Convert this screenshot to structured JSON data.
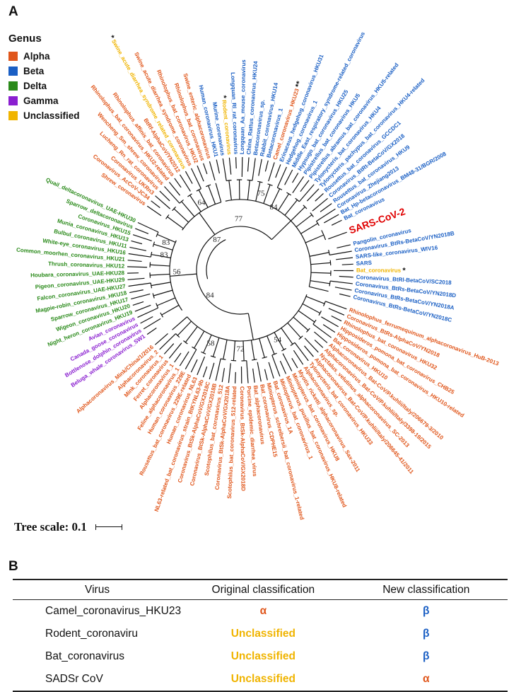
{
  "panel_a": {
    "letter": "A"
  },
  "panel_b": {
    "letter": "B"
  },
  "legend": {
    "title": "Genus",
    "items": [
      {
        "label": "Alpha",
        "color": "#e0561b"
      },
      {
        "label": "Beta",
        "color": "#1a5fc4"
      },
      {
        "label": "Delta",
        "color": "#2a8a1a"
      },
      {
        "label": "Gamma",
        "color": "#8a1fd0"
      },
      {
        "label": "Unclassified",
        "color": "#f0b400"
      }
    ]
  },
  "colors": {
    "Alpha": "#e0561b",
    "Beta": "#1a5fc4",
    "Delta": "#2a8a1a",
    "Gamma": "#8a1fd0",
    "Unclassified": "#f0b400",
    "highlight": "#e00000"
  },
  "tree": {
    "scale_label": "Tree scale: 0.1",
    "bootstrap": [
      "75",
      "84",
      "64",
      "77",
      "83",
      "83",
      "87",
      "56",
      "84",
      "58",
      "72",
      "54"
    ],
    "leaves": [
      {
        "label": "Rhinolophus_ferrumequinum_alphacoronavirus_HuB-2013",
        "genus": "Alpha"
      },
      {
        "label": "Coronavirus_BtRs-AlphaCoV/YN2018",
        "genus": "Alpha"
      },
      {
        "label": "Rhinolophus_bat_coronavirus_HKU32",
        "genus": "Alpha"
      },
      {
        "label": "Hipposideros_pomona_bat_coronavirus_CHB25",
        "genus": "Alpha"
      },
      {
        "label": "Hipposideros_pomona_bat_coronavirus_HKU10-related",
        "genus": "Alpha"
      },
      {
        "label": "Bat_coronavirus_HKU10",
        "genus": "Alpha"
      },
      {
        "label": "Alphacoronavirus_Bat-CoV/P.kuhlii/Italy/206679-3/2010",
        "genus": "Alpha"
      },
      {
        "label": "Alphacoronavirus_Bat-CoV/P.kuhlii/Italy/3398-19/2015",
        "genus": "Alpha"
      },
      {
        "label": "Nyctalus_velutinus_alphacoronavirus_SC-2013",
        "genus": "Alpha"
      },
      {
        "label": "Alphacoronavirus_Bat-CoV/P.kuhlii/Italy/206645-41/2011",
        "genus": "Alpha"
      },
      {
        "label": "Tylonycteris_bat_coronavirus_HKU33",
        "genus": "Alpha"
      },
      {
        "label": "Alphacoronavirus_sp.",
        "genus": "Alpha"
      },
      {
        "label": "Myotis_ricketti_alphacoronavirus_Sax-2011",
        "genus": "Alpha"
      },
      {
        "label": "Miniopterus_bat_coronavirus_HKU8",
        "genus": "Alpha"
      },
      {
        "label": "Miniopterus_pusillus_bat_coronavirus_HKU8-related",
        "genus": "Alpha"
      },
      {
        "label": "Miniopterus_bat_coronavirus_1",
        "genus": "Alpha"
      },
      {
        "label": "Bat_coronavirus_1A",
        "genus": "Alpha"
      },
      {
        "label": "Miniopterus_schreibersii_bat_coronavirus_1-related",
        "genus": "Alpha"
      },
      {
        "label": "Bat_coronavirus_CDPHE15",
        "genus": "Alpha"
      },
      {
        "label": "Bat_alphacoronavirus",
        "genus": "Alpha"
      },
      {
        "label": "Porcine_epidemic_diarrhea_virus",
        "genus": "Alpha"
      },
      {
        "label": "Coronavirus_BtSk-AlphaCoV/GX2018D",
        "genus": "Alpha"
      },
      {
        "label": "Scotophilus_bat_coronavirus_512-related",
        "genus": "Alpha"
      },
      {
        "label": "Coronavirus_BtSk-AlphaCoV/GX2018A",
        "genus": "Alpha"
      },
      {
        "label": "Scotophilus_bat_coronavirus_512",
        "genus": "Alpha"
      },
      {
        "label": "Coronavirus_BtSk-AlphaCoV/GX2018B",
        "genus": "Alpha"
      },
      {
        "label": "Coronavirus_BtSk-AlphaCoV/GX2018C",
        "genus": "Alpha"
      },
      {
        "label": "NL63-related_bat_coronavirus_strain_BtKYNL63-9b",
        "genus": "Alpha"
      },
      {
        "label": "Human_coronavirus_NL63",
        "genus": "Alpha"
      },
      {
        "label": "Rousettus_bat_coronavirus_229E-related",
        "genus": "Alpha"
      },
      {
        "label": "Human_coronavirus_229E",
        "genus": "Alpha"
      },
      {
        "label": "Feline_alphacoronavirus_1",
        "genus": "Alpha"
      },
      {
        "label": "Alphacoronavirus_1",
        "genus": "Alpha"
      },
      {
        "label": "Ferret_coronavirus",
        "genus": "Alpha"
      },
      {
        "label": "Mink_coronavirus_1",
        "genus": "Alpha"
      },
      {
        "label": "Alphacoronavirus_2",
        "genus": "Alpha"
      },
      {
        "label": "Alphacoronavirus_Mink/China/1/2016",
        "genus": "Alpha"
      },
      {
        "label": "Beluga_whale_coronavirus_SW1",
        "genus": "Gamma"
      },
      {
        "label": "Bottlenose_dolphin_coronavirus",
        "genus": "Gamma"
      },
      {
        "label": "Canada_goose_coronavirus",
        "genus": "Gamma"
      },
      {
        "label": "Avian_coronavirus",
        "genus": "Gamma"
      },
      {
        "label": "Night_heron_coronavirus_HKU19",
        "genus": "Delta"
      },
      {
        "label": "Wigeon_coronavirus_HKU20",
        "genus": "Delta"
      },
      {
        "label": "Sparrow_coronavirus_HKU17",
        "genus": "Delta"
      },
      {
        "label": "Magpie-robin_coronavirus_HKU18",
        "genus": "Delta"
      },
      {
        "label": "Falcon_coronavirus_UAE-HKU27",
        "genus": "Delta"
      },
      {
        "label": "Pigeon_coronavirus_UAE-HKU29",
        "genus": "Delta"
      },
      {
        "label": "Houbara_coronavirus_UAE-HKU28",
        "genus": "Delta"
      },
      {
        "label": "Thrush_coronavirus_HKU12",
        "genus": "Delta"
      },
      {
        "label": "Common_moorhen_coronavirus_HKU21",
        "genus": "Delta"
      },
      {
        "label": "White-eye_coronavirus_HKU16",
        "genus": "Delta"
      },
      {
        "label": "Bulbul_coronavirus_HKU11",
        "genus": "Delta"
      },
      {
        "label": "Munia_coronavirus_HKU13",
        "genus": "Delta"
      },
      {
        "label": "Coronavirus_HKU15",
        "genus": "Delta"
      },
      {
        "label": "Sparrow_deltacoronavirus",
        "genus": "Delta"
      },
      {
        "label": "Quail_deltacoronavirus_UAE-HKU30",
        "genus": "Delta"
      },
      {
        "label": "Shrew_coronavirus",
        "genus": "Alpha"
      },
      {
        "label": "Coronavirus_AcCoV-JC34",
        "genus": "Alpha"
      },
      {
        "label": "Coronavirus_UKRn3",
        "genus": "Alpha"
      },
      {
        "label": "Lucheng_Rn_rat_coronavirus",
        "genus": "Alpha"
      },
      {
        "label": "Wencheng_Sm_shrew_coronavirus",
        "genus": "Alpha"
      },
      {
        "label": "Rhinolophus_bat_coronavirus_HKU2-related",
        "genus": "Alpha"
      },
      {
        "label": "Rhinolophus_affinis_bat_coronavirus",
        "genus": "Alpha"
      },
      {
        "label": "BtRf-AlphaCoV/YN2012",
        "genus": "Alpha"
      },
      {
        "label": "Swine_acute_diarrhea_syndrome_related_coronavirus",
        "genus": "Unclassified",
        "marker": "*"
      },
      {
        "label": "Swine_acute_diarrhea_syndrome_coronavirus",
        "genus": "Alpha"
      },
      {
        "label": "Rhinolophus_bat_coronavirus_HKU2",
        "genus": "Alpha"
      },
      {
        "label": "Rhinolophus_bat_coronavirus",
        "genus": "Alpha"
      },
      {
        "label": "Swine_enteric_alphacoronavirus",
        "genus": "Alpha"
      },
      {
        "label": "Human_coronavirus_HKU1",
        "genus": "Beta"
      },
      {
        "label": "Murine_coronavirus",
        "genus": "Beta"
      },
      {
        "label": "Rodent_coronavirus",
        "genus": "Unclassified",
        "marker": "*"
      },
      {
        "label": "Longquan_Rl_rat_coronavirus",
        "genus": "Beta"
      },
      {
        "label": "Longquan_Aa_mouse_coronavirus",
        "genus": "Beta"
      },
      {
        "label": "China_Rattus_coronavirus_HKU24",
        "genus": "Beta"
      },
      {
        "label": "Betacoronavirus_sp.",
        "genus": "Beta"
      },
      {
        "label": "Rabbit_coronavirus_HKU14",
        "genus": "Beta"
      },
      {
        "label": "Betacoronavirus_1",
        "genus": "Beta"
      },
      {
        "label": "Camel_coronavirus_HKU23",
        "genus": "Alpha",
        "marker": "**"
      },
      {
        "label": "Erinaceus_hedgehog_coronavirus_HKU31",
        "genus": "Beta"
      },
      {
        "label": "Hedgehog_coronavirus_1",
        "genus": "Beta"
      },
      {
        "label": "Middle_East_respiratory_syndrome-related_coronavirus",
        "genus": "Beta"
      },
      {
        "label": "Hypsugo_bat_coronavirus_HKU25",
        "genus": "Beta"
      },
      {
        "label": "Pipistrellus_bat_coronavirus_HKU5",
        "genus": "Beta"
      },
      {
        "label": "Pipistrellus_abramus_bat_coronavirus_HKU5-related",
        "genus": "Beta"
      },
      {
        "label": "Tylonycteris_bat_coronavirus_HKU4",
        "genus": "Beta"
      },
      {
        "label": "Tylonycteris_pachypus_bat_coronavirus_HKU4-related",
        "genus": "Beta"
      },
      {
        "label": "Rousettus_bat_coronavirus_GCCDC1",
        "genus": "Beta"
      },
      {
        "label": "Coronavirus_BtRt-BetaCoV/GX2018",
        "genus": "Beta"
      },
      {
        "label": "Rousettus_bat_coronavirus_HKU9",
        "genus": "Beta"
      },
      {
        "label": "Coronavirus_Zhejiang2013",
        "genus": "Beta"
      },
      {
        "label": "Bat_Hp-betacoronavirus_BM48-31/BGR/2008",
        "genus": "Beta"
      },
      {
        "label": "Bat_coronavirus",
        "genus": "Beta"
      },
      {
        "label": "SARS-CoV-2",
        "genus": "Beta",
        "highlight": true
      },
      {
        "label": "Pangolin_coronavirus",
        "genus": "Beta"
      },
      {
        "label": "Coronavirus_BtRs-BetaCoV/YN2018B",
        "genus": "Beta"
      },
      {
        "label": "SARS-like_coronavirus_WIV16",
        "genus": "Beta"
      },
      {
        "label": "SARS",
        "genus": "Beta"
      },
      {
        "label": "Bat_coronavirus",
        "genus": "Unclassified",
        "marker": "*"
      },
      {
        "label": "Coronavirus_BtRl-BetaCoV/SC2018",
        "genus": "Beta"
      },
      {
        "label": "Coronavirus_BtRs-BetaCoV/YN2018D",
        "genus": "Beta"
      },
      {
        "label": "Coronavirus_BtRs-BetaCoV/YN2018A",
        "genus": "Beta"
      },
      {
        "label": "Coronavirus_BtRs-BetaCoV/YN2018C",
        "genus": "Beta"
      }
    ]
  },
  "table": {
    "headers": [
      "Virus",
      "Original classification",
      "New classification"
    ],
    "rows": [
      {
        "virus": "Camel_coronavirus_HKU23",
        "original": "α",
        "original_genus": "Alpha",
        "new": "β",
        "new_genus": "Beta"
      },
      {
        "virus": "Rodent_coronaviru",
        "original": "Unclassified",
        "original_genus": "Unclassified",
        "new": "β",
        "new_genus": "Beta"
      },
      {
        "virus": "Bat_coronavirus",
        "original": "Unclassified",
        "original_genus": "Unclassified",
        "new": "β",
        "new_genus": "Beta"
      },
      {
        "virus": "SADSr CoV",
        "original": "Unclassified",
        "original_genus": "Unclassified",
        "new": "α",
        "new_genus": "Alpha"
      }
    ]
  }
}
